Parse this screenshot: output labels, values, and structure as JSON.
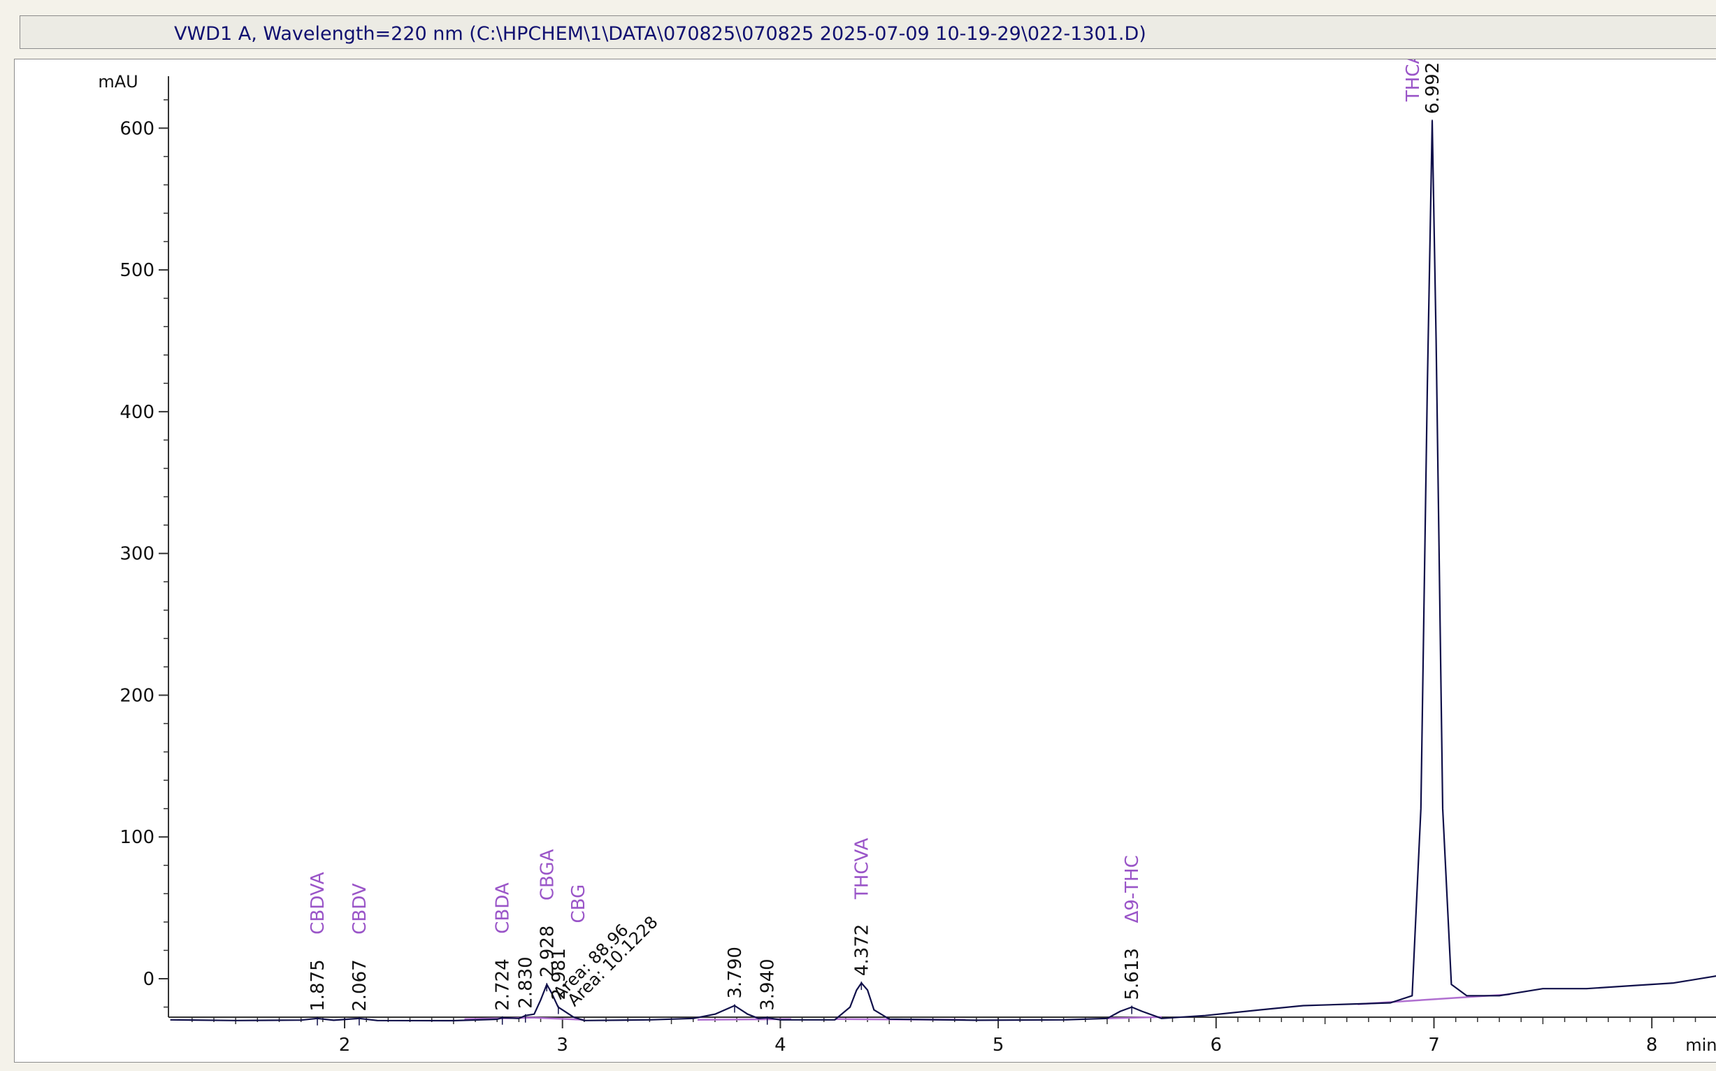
{
  "window": {
    "signal_title": "VWD1 A, Wavelength=220 nm (C:\\HPCHEM\\1\\DATA\\070825\\070825 2025-07-09 10-19-29\\022-1301.D)"
  },
  "chart_data": {
    "type": "line",
    "ylabel": "mAU",
    "xlabel": "min",
    "xlim": [
      1.2,
      8.3
    ],
    "ylim": [
      -40,
      620
    ],
    "x_ticks": [
      2,
      3,
      4,
      5,
      6,
      7,
      8
    ],
    "y_ticks": [
      0,
      100,
      200,
      300,
      400,
      500,
      600
    ],
    "grid": false,
    "series": [
      {
        "points": [
          [
            1.2,
            -29
          ],
          [
            1.5,
            -29.5
          ],
          [
            1.8,
            -29.2
          ],
          [
            1.875,
            -28
          ],
          [
            1.95,
            -29.3
          ],
          [
            2.067,
            -28
          ],
          [
            2.15,
            -29.5
          ],
          [
            2.5,
            -29.6
          ],
          [
            2.7,
            -28.6
          ],
          [
            2.724,
            -27.5
          ],
          [
            2.8,
            -28
          ],
          [
            2.83,
            -26
          ],
          [
            2.87,
            -25
          ],
          [
            2.9,
            -15
          ],
          [
            2.928,
            -4
          ],
          [
            2.95,
            -10
          ],
          [
            2.98,
            -20
          ],
          [
            3.0,
            -22
          ],
          [
            3.05,
            -27
          ],
          [
            3.1,
            -29.5
          ],
          [
            3.4,
            -29
          ],
          [
            3.6,
            -28
          ],
          [
            3.7,
            -25
          ],
          [
            3.79,
            -19
          ],
          [
            3.85,
            -25
          ],
          [
            3.9,
            -28
          ],
          [
            3.94,
            -27.5
          ],
          [
            4.0,
            -29
          ],
          [
            4.25,
            -29
          ],
          [
            4.32,
            -20
          ],
          [
            4.35,
            -8
          ],
          [
            4.372,
            -3
          ],
          [
            4.4,
            -8
          ],
          [
            4.43,
            -22
          ],
          [
            4.5,
            -28.5
          ],
          [
            4.9,
            -29.3
          ],
          [
            5.3,
            -29
          ],
          [
            5.5,
            -28
          ],
          [
            5.56,
            -23
          ],
          [
            5.613,
            -20
          ],
          [
            5.66,
            -23
          ],
          [
            5.75,
            -28
          ],
          [
            5.95,
            -26
          ],
          [
            6.2,
            -22
          ],
          [
            6.4,
            -19
          ],
          [
            6.6,
            -18
          ],
          [
            6.8,
            -17
          ],
          [
            6.9,
            -12
          ],
          [
            6.94,
            120
          ],
          [
            6.97,
            420
          ],
          [
            6.992,
            605
          ],
          [
            7.01,
            450
          ],
          [
            7.04,
            120
          ],
          [
            7.08,
            -4
          ],
          [
            7.15,
            -12
          ],
          [
            7.3,
            -12
          ],
          [
            7.5,
            -7
          ],
          [
            7.7,
            -7
          ],
          [
            7.9,
            -5
          ],
          [
            8.1,
            -3
          ],
          [
            8.3,
            2
          ]
        ]
      }
    ],
    "baseline_segments": [
      [
        [
          2.55,
          -28.5
        ],
        [
          2.87,
          -27.5
        ]
      ],
      [
        [
          2.87,
          -27.5
        ],
        [
          3.1,
          -29
        ]
      ],
      [
        [
          3.62,
          -29
        ],
        [
          4.05,
          -28.5
        ]
      ],
      [
        [
          4.25,
          -28.5
        ],
        [
          4.85,
          -29
        ]
      ],
      [
        [
          5.5,
          -28
        ],
        [
          5.75,
          -27
        ]
      ],
      [
        [
          6.65,
          -18
        ],
        [
          7.35,
          -11
        ]
      ]
    ],
    "peaks": [
      {
        "rt": "1.875",
        "x": 1.875,
        "y": -28,
        "name": "CBDVA"
      },
      {
        "rt": "2.067",
        "x": 2.067,
        "y": -28,
        "name": "CBDV"
      },
      {
        "rt": "2.724",
        "x": 2.724,
        "y": -27.5,
        "name": "CBDA"
      },
      {
        "rt": "2.830",
        "x": 2.83,
        "y": -26,
        "name": ""
      },
      {
        "rt": "2.928",
        "x": 2.928,
        "y": -4,
        "name": "CBGA"
      },
      {
        "rt": "2.981",
        "x": 2.981,
        "y": -20,
        "name": "CBG"
      },
      {
        "rt": "3.790",
        "x": 3.79,
        "y": -19,
        "name": ""
      },
      {
        "rt": "3.940",
        "x": 3.94,
        "y": -27.5,
        "name": ""
      },
      {
        "rt": "4.372",
        "x": 4.372,
        "y": -3,
        "name": "THCVA"
      },
      {
        "rt": "5.613",
        "x": 5.613,
        "y": -20,
        "name": "Δ9-THC"
      },
      {
        "rt": "6.992",
        "x": 6.992,
        "y": 605,
        "name": "THCA"
      }
    ],
    "annotations": [
      {
        "text": "Area: 88.96",
        "x": 2.99,
        "y": -23
      },
      {
        "text": "Area: 10.1228",
        "x": 3.03,
        "y": -28
      }
    ],
    "colors": {
      "trace": "#10104a",
      "baseline": "#b070d0",
      "compound_label": "#9a55c8",
      "axis": "#333333",
      "title_text": "#101070"
    }
  }
}
